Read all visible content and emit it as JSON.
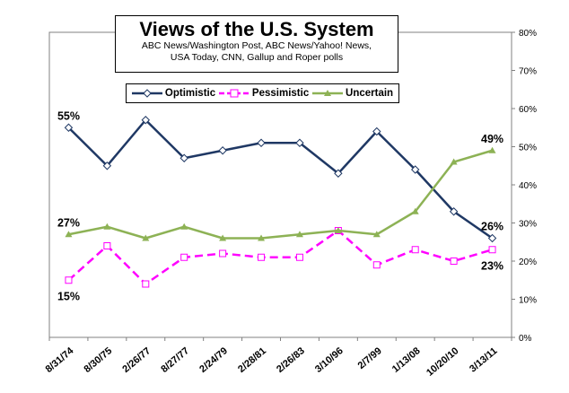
{
  "chart_data": {
    "type": "line",
    "title": "Views of the U.S. System",
    "subtitle_lines": [
      "ABC News/Washington Post, ABC News/Yahoo! News,",
      "USA Today, CNN, Gallup and Roper polls"
    ],
    "categories": [
      "8/31/74",
      "8/30/75",
      "2/26/77",
      "8/27/77",
      "2/24/79",
      "2/28/81",
      "2/26/83",
      "3/10/96",
      "2/7/99",
      "1/13/08",
      "10/20/10",
      "3/13/11"
    ],
    "series": [
      {
        "name": "Optimistic",
        "color": "#1f3864",
        "marker": "diamond",
        "values": [
          55,
          45,
          57,
          47,
          49,
          51,
          51,
          43,
          54,
          44,
          33,
          26
        ]
      },
      {
        "name": "Pessimistic",
        "color": "#ff00ff",
        "marker": "square",
        "dashed": true,
        "values": [
          15,
          24,
          14,
          21,
          22,
          21,
          21,
          28,
          19,
          23,
          20,
          23
        ]
      },
      {
        "name": "Uncertain",
        "color": "#8db255",
        "marker": "triangle",
        "values": [
          27,
          29,
          26,
          29,
          26,
          26,
          27,
          28,
          27,
          33,
          46,
          49
        ]
      }
    ],
    "ylim": [
      0,
      80
    ],
    "yticks": [
      0,
      10,
      20,
      30,
      40,
      50,
      60,
      70,
      80
    ],
    "ytick_labels": [
      "0%",
      "10%",
      "20%",
      "30%",
      "40%",
      "50%",
      "60%",
      "70%",
      "80%"
    ],
    "annotations": [
      {
        "text": "55%",
        "series": 0,
        "index": 0,
        "place": "above"
      },
      {
        "text": "27%",
        "series": 2,
        "index": 0,
        "place": "above"
      },
      {
        "text": "15%",
        "series": 1,
        "index": 0,
        "place": "below"
      },
      {
        "text": "49%",
        "series": 2,
        "index": 11,
        "place": "above"
      },
      {
        "text": "26%",
        "series": 0,
        "index": 11,
        "place": "above"
      },
      {
        "text": "23%",
        "series": 1,
        "index": 11,
        "place": "below"
      }
    ]
  }
}
